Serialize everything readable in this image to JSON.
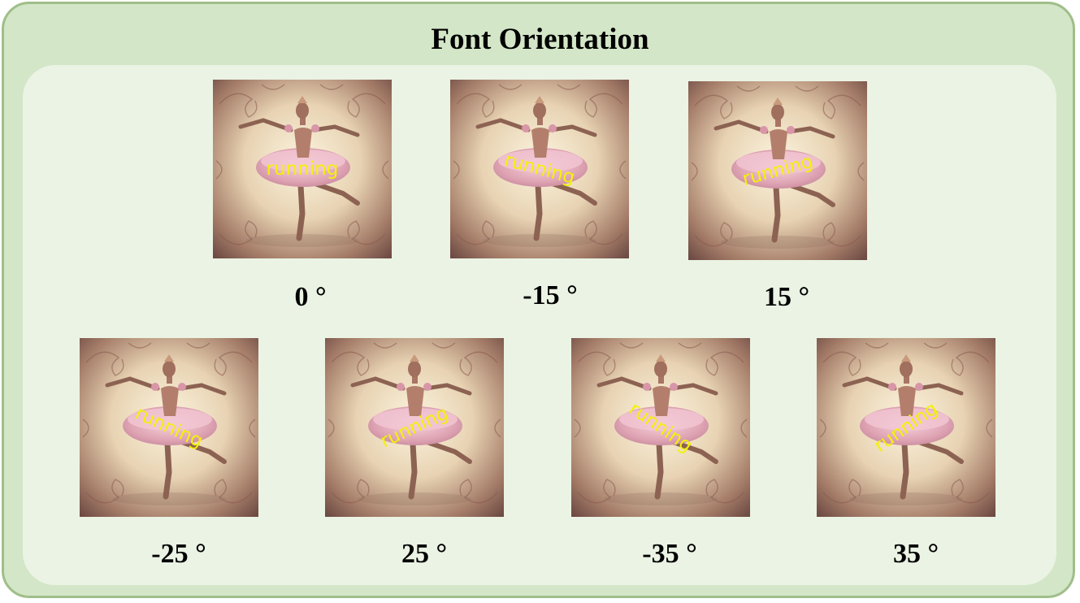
{
  "title": "Font Orientation",
  "overlay_text_color": "#f2f20a",
  "panel_colors": {
    "outer": "#d3e6c7",
    "border": "#9fbe89",
    "inner": "#ebf3e4"
  },
  "image_content": "ballerina in pink tutu with ornate vintage frame",
  "examples": [
    {
      "word": "running",
      "angle": 0,
      "label": "0 °"
    },
    {
      "word": "running",
      "angle": -15,
      "label": "-15 °"
    },
    {
      "word": "running",
      "angle": 15,
      "label": "15 °"
    },
    {
      "word": "running",
      "angle": -25,
      "label": "-25 °"
    },
    {
      "word": "running",
      "angle": 25,
      "label": "25 °"
    },
    {
      "word": "running",
      "angle": -35,
      "label": "-35 °"
    },
    {
      "word": "running",
      "angle": 35,
      "label": "35 °"
    }
  ]
}
